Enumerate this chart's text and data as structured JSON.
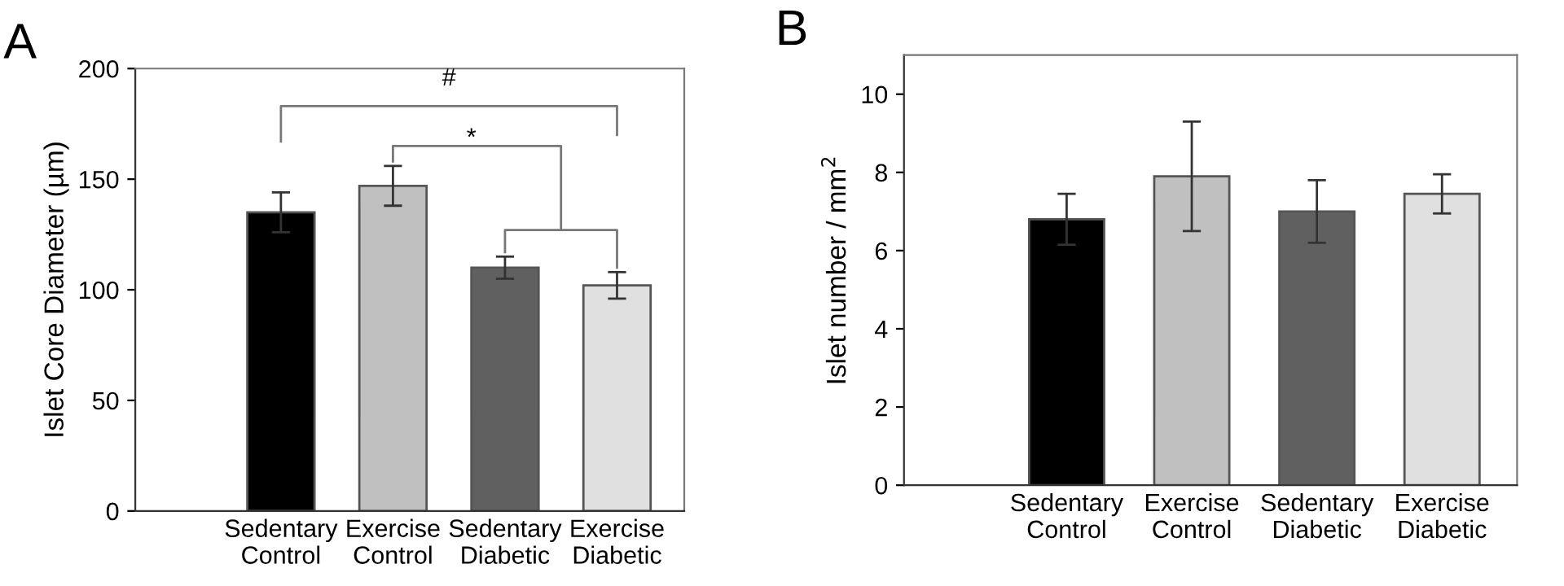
{
  "chart_data": [
    {
      "type": "bar",
      "title": "A",
      "ylabel": "Islet Core Diameter (µm)",
      "categories": [
        "Sedentary\nControl",
        "Exercise\nControl",
        "Sedentary\nDiabetic",
        "Exercise\nDiabetic"
      ],
      "values": [
        135,
        147,
        110,
        102
      ],
      "errors": [
        9,
        9,
        5,
        6
      ],
      "colors": [
        "#000000",
        "#c0c0c0",
        "#606060",
        "#e0e0e0"
      ],
      "ylim": [
        0,
        200
      ],
      "yticks": [
        0,
        50,
        100,
        150,
        200
      ],
      "grid": false,
      "legend": false,
      "annotations": [
        "#",
        "*"
      ]
    },
    {
      "type": "bar",
      "title": "B",
      "ylabel": "Islet number / mm$^{2}$",
      "categories": [
        "Sedentary\nControl",
        "Exercise\nControl",
        "Sedentary\nDiabetic",
        "Exercise\nDiabetic"
      ],
      "values": [
        6.8,
        7.9,
        7.0,
        7.45
      ],
      "errors": [
        0.65,
        1.4,
        0.8,
        0.5
      ],
      "colors": [
        "#000000",
        "#c0c0c0",
        "#606060",
        "#e0e0e0"
      ],
      "ylim": [
        0,
        11
      ],
      "yticks": [
        0,
        2,
        4,
        6,
        8,
        10
      ],
      "grid": false,
      "legend": false
    }
  ]
}
